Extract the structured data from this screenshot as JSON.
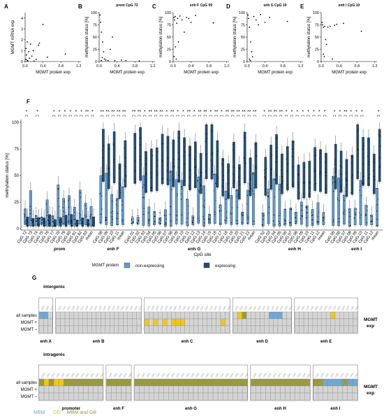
{
  "colors": {
    "non_expressing": "#5b9bd5",
    "expressing": "#1f4e79",
    "mbm": "#6fa8d6",
    "gb": "#f2c811",
    "mbm_and_gb": "#9a9a3a",
    "cell_empty": "#d4d4d4",
    "median_red": "#e05050"
  },
  "panels_top": [
    {
      "letter": "A",
      "title": "",
      "ylabel": "MGMT mRNA exp",
      "xlabel": "MGMT protein exp",
      "y_ticks": [
        "0",
        "1",
        "2",
        "3",
        "4"
      ],
      "x_ticks": [
        "0.0",
        "0.4",
        "0.8",
        "1.2"
      ],
      "ylim": [
        0,
        4.5
      ],
      "xlim": [
        0,
        1.25
      ],
      "points": [
        [
          0.02,
          0.2
        ],
        [
          0.03,
          0.6
        ],
        [
          0.05,
          1.8
        ],
        [
          0.05,
          0.1
        ],
        [
          0.08,
          0.9
        ],
        [
          0.1,
          0.3
        ],
        [
          0.12,
          1.6
        ],
        [
          0.15,
          0.5
        ],
        [
          0.2,
          0.05
        ],
        [
          0.3,
          1.5
        ],
        [
          0.32,
          1.7
        ],
        [
          0.4,
          3.4
        ],
        [
          0.5,
          0.4
        ],
        [
          0.02,
          1.2
        ],
        [
          0.06,
          0.05
        ],
        [
          0.9,
          0.7
        ],
        [
          0.18,
          1.0
        ],
        [
          0.25,
          0.2
        ]
      ]
    },
    {
      "letter": "B",
      "title": "prom CpG 72",
      "ylabel": "methylation status [%]",
      "xlabel": "MGMT protein exp",
      "y_ticks": [
        "0",
        "25",
        "50",
        "75",
        "100"
      ],
      "x_ticks": [
        "0.0",
        "0.4",
        "0.8",
        "1.2"
      ],
      "ylim": [
        0,
        100
      ],
      "xlim": [
        0,
        1.25
      ],
      "points": [
        [
          0.02,
          95
        ],
        [
          0.03,
          80
        ],
        [
          0.05,
          60
        ],
        [
          0.08,
          40
        ],
        [
          0.1,
          20
        ],
        [
          0.12,
          5
        ],
        [
          0.15,
          3
        ],
        [
          0.2,
          2
        ],
        [
          0.3,
          50
        ],
        [
          0.35,
          2
        ],
        [
          0.5,
          3
        ],
        [
          0.6,
          2
        ],
        [
          0.9,
          1
        ],
        [
          0.05,
          2
        ],
        [
          0.07,
          8
        ],
        [
          0.25,
          25
        ]
      ]
    },
    {
      "letter": "C",
      "title": "enh F CpG 09",
      "ylabel": "methylation status [%]",
      "xlabel": "MGMT protein exp",
      "y_ticks": [
        "0",
        "25",
        "50",
        "75",
        "100"
      ],
      "x_ticks": [
        "0.0",
        "0.4",
        "0.8",
        "1.2"
      ],
      "ylim": [
        0,
        100
      ],
      "xlim": [
        0,
        1.25
      ],
      "points": [
        [
          0.02,
          90
        ],
        [
          0.03,
          85
        ],
        [
          0.05,
          92
        ],
        [
          0.08,
          78
        ],
        [
          0.1,
          88
        ],
        [
          0.12,
          40
        ],
        [
          0.15,
          93
        ],
        [
          0.2,
          85
        ],
        [
          0.3,
          90
        ],
        [
          0.35,
          88
        ],
        [
          0.4,
          80
        ],
        [
          0.5,
          94
        ],
        [
          0.9,
          79
        ],
        [
          0.05,
          30
        ],
        [
          0.07,
          5
        ],
        [
          0.25,
          60
        ],
        [
          0.02,
          10
        ]
      ]
    },
    {
      "letter": "D",
      "title": "enh G CpG 19",
      "ylabel": "methylation status [%]",
      "xlabel": "MGMT protein exp",
      "y_ticks": [
        "0",
        "25",
        "50",
        "75",
        "100"
      ],
      "x_ticks": [
        "0.0",
        "0.4",
        "0.8",
        "1.2"
      ],
      "ylim": [
        0,
        100
      ],
      "xlim": [
        0,
        1.25
      ],
      "points": [
        [
          0.02,
          95
        ],
        [
          0.03,
          88
        ],
        [
          0.05,
          70
        ],
        [
          0.08,
          40
        ],
        [
          0.1,
          20
        ],
        [
          0.12,
          10
        ],
        [
          0.15,
          92
        ],
        [
          0.2,
          85
        ],
        [
          0.3,
          96
        ],
        [
          0.4,
          80
        ],
        [
          0.5,
          90
        ],
        [
          0.9,
          82
        ],
        [
          0.05,
          5
        ],
        [
          0.07,
          2
        ],
        [
          0.25,
          75
        ]
      ]
    },
    {
      "letter": "E",
      "title": "enh I CpG 10",
      "ylabel": "methylation status [%]",
      "xlabel": "MGMT protein exp",
      "y_ticks": [
        "0",
        "25",
        "50",
        "75",
        "100"
      ],
      "x_ticks": [
        "0.0",
        "0.4",
        "0.8",
        "1.2"
      ],
      "ylim": [
        0,
        100
      ],
      "xlim": [
        0,
        1.25
      ],
      "points": [
        [
          0.02,
          80
        ],
        [
          0.03,
          75
        ],
        [
          0.05,
          70
        ],
        [
          0.08,
          72
        ],
        [
          0.1,
          45
        ],
        [
          0.12,
          35
        ],
        [
          0.15,
          70
        ],
        [
          0.2,
          72
        ],
        [
          0.3,
          74
        ],
        [
          0.35,
          76
        ],
        [
          0.5,
          78
        ],
        [
          0.9,
          62
        ],
        [
          0.05,
          15
        ],
        [
          0.07,
          10
        ],
        [
          0.25,
          5
        ]
      ]
    }
  ],
  "panel_f": {
    "letter": "F",
    "ylabel": "methylation status [%]",
    "xlabel": "CpG site",
    "y_ticks": [
      "0",
      "25",
      "50",
      "75",
      "100"
    ],
    "ylim": [
      0,
      100
    ],
    "legend_title": "MGMT protein",
    "legend_items": [
      "non-expressing",
      "expressing"
    ],
    "groups": [
      {
        "name": "prom",
        "sites": [
          "CpG 72",
          "CpG 73",
          "CpG 74",
          "CpG 75",
          "CpG 76",
          "CpG 77",
          "CpG 78",
          "CpG 79",
          "CpG 80",
          "CpG 81",
          "CpG 82",
          "CpG 83",
          "mean"
        ],
        "sig": [
          "*",
          "",
          "*",
          "",
          "",
          "*",
          "*",
          "*",
          "*",
          "*",
          "*",
          "**",
          "*"
        ]
      },
      {
        "name": "enh F",
        "sites": [
          "CpG 08",
          "CpG 09",
          "CpG 10",
          "CpG 11",
          "mean"
        ],
        "sig": [
          "**",
          "**",
          "**",
          "**",
          "**"
        ]
      },
      {
        "name": "enh G",
        "sites": [
          "CpG 01",
          "CpG 02",
          "CpG 03",
          "CpG 04",
          "CpG 05",
          "CpG 06",
          "CpG 07",
          "CpG 08",
          "CpG 09",
          "CpG 10",
          "CpG 11",
          "CpG 12",
          "CpG 13",
          "CpG 14",
          "CpG 15",
          "CpG 16",
          "CpG 17",
          "CpG 18",
          "CpG 19",
          "CpG 20",
          "CpG 21",
          "CpG 22",
          "mean"
        ],
        "sig": [
          "**",
          "**",
          "*",
          "**",
          "**",
          "**",
          "*",
          "**",
          "*",
          "*",
          "**",
          "*",
          "**",
          "**",
          "*",
          "**",
          "*",
          "**",
          "**",
          "**",
          "**",
          "**",
          "**"
        ]
      },
      {
        "name": "enh H",
        "sites": [
          "CpG 02",
          "CpG 03",
          "CpG 04",
          "CpG 05",
          "CpG 06",
          "CpG 07",
          "CpG 08",
          "CpG 09",
          "CpG 10",
          "CpG 11",
          "CpG 12",
          "mean"
        ],
        "sig": [
          "*",
          "**",
          "**",
          "**",
          "*",
          "*",
          "*",
          "*",
          "*",
          "*",
          "*",
          "*"
        ]
      },
      {
        "name": "enh I",
        "sites": [
          "CpG 05",
          "CpG 06",
          "CpG 07",
          "CpG 08",
          "CpG 09",
          "CpG 10",
          "CpG 11",
          "CpG 12",
          "mean"
        ],
        "sig": [
          "*",
          "*",
          "**",
          "*",
          "*",
          "*",
          "",
          "",
          "*"
        ]
      }
    ]
  },
  "panel_g": {
    "letter": "G",
    "side_label_line1": "MGMT",
    "side_label_line2": "exp",
    "row_labels": [
      "all samples",
      "MGMT +",
      "MGMT –"
    ],
    "legend": [
      "MBM",
      "GB",
      "MBM and GB"
    ],
    "intergenic": {
      "title": "intergenic",
      "blocks": [
        {
          "name": "enh A",
          "n": 3,
          "marks": [
            [
              0,
              0,
              "mbm"
            ],
            [
              0,
              1,
              "mbm"
            ]
          ]
        },
        {
          "name": "enh B",
          "n": 19,
          "marks": []
        },
        {
          "name": "enh C",
          "n": 19,
          "marks": [
            [
              1,
              0,
              "gb"
            ],
            [
              1,
              2,
              "gb"
            ],
            [
              1,
              4,
              "gb"
            ],
            [
              1,
              6,
              "gb"
            ],
            [
              1,
              7,
              "gb"
            ],
            [
              1,
              8,
              "gb"
            ],
            [
              1,
              17,
              "gb"
            ]
          ]
        },
        {
          "name": "enh D",
          "n": 13,
          "marks": [
            [
              0,
              1,
              "gb"
            ],
            [
              0,
              2,
              "mbm_and_gb"
            ],
            [
              0,
              8,
              "mbm"
            ],
            [
              0,
              9,
              "mbm"
            ],
            [
              0,
              10,
              "mbm"
            ]
          ]
        },
        {
          "name": "enh E",
          "n": 14,
          "marks": [
            [
              0,
              8,
              "gb"
            ]
          ]
        }
      ]
    },
    "intragenic": {
      "title": "intragenic",
      "blocks": [
        {
          "name": "promoter",
          "n": 13,
          "marks": [
            [
              0,
              0,
              "mbm_and_gb"
            ],
            [
              0,
              1,
              "gb"
            ],
            [
              0,
              2,
              "mbm_and_gb"
            ],
            [
              0,
              3,
              "gb"
            ],
            [
              0,
              4,
              "gb"
            ],
            [
              0,
              5,
              "mbm_and_gb"
            ],
            [
              0,
              6,
              "mbm_and_gb"
            ],
            [
              0,
              7,
              "mbm_and_gb"
            ],
            [
              0,
              8,
              "mbm_and_gb"
            ],
            [
              0,
              9,
              "mbm_and_gb"
            ],
            [
              0,
              10,
              "mbm_and_gb"
            ],
            [
              0,
              11,
              "mbm_and_gb"
            ],
            [
              0,
              12,
              "mbm_and_gb"
            ]
          ]
        },
        {
          "name": "enh F",
          "n": 5,
          "marks": [
            [
              0,
              0,
              "mbm_and_gb"
            ],
            [
              0,
              1,
              "mbm_and_gb"
            ],
            [
              0,
              2,
              "mbm_and_gb"
            ],
            [
              0,
              3,
              "mbm_and_gb"
            ],
            [
              0,
              4,
              "mbm_and_gb"
            ]
          ]
        },
        {
          "name": "enh G",
          "n": 23,
          "marks": "all"
        },
        {
          "name": "enh H",
          "n": 12,
          "marks": "all"
        },
        {
          "name": "enh I",
          "n": 9,
          "marks": [
            [
              0,
              0,
              "mbm_and_gb"
            ],
            [
              0,
              1,
              "mbm_and_gb"
            ],
            [
              0,
              2,
              "mbm"
            ],
            [
              0,
              3,
              "mbm"
            ],
            [
              0,
              4,
              "mbm"
            ],
            [
              0,
              5,
              "mbm"
            ],
            [
              0,
              6,
              "mbm_and_gb"
            ],
            [
              0,
              7,
              "mbm"
            ],
            [
              0,
              8,
              "mbm"
            ]
          ]
        }
      ]
    }
  }
}
